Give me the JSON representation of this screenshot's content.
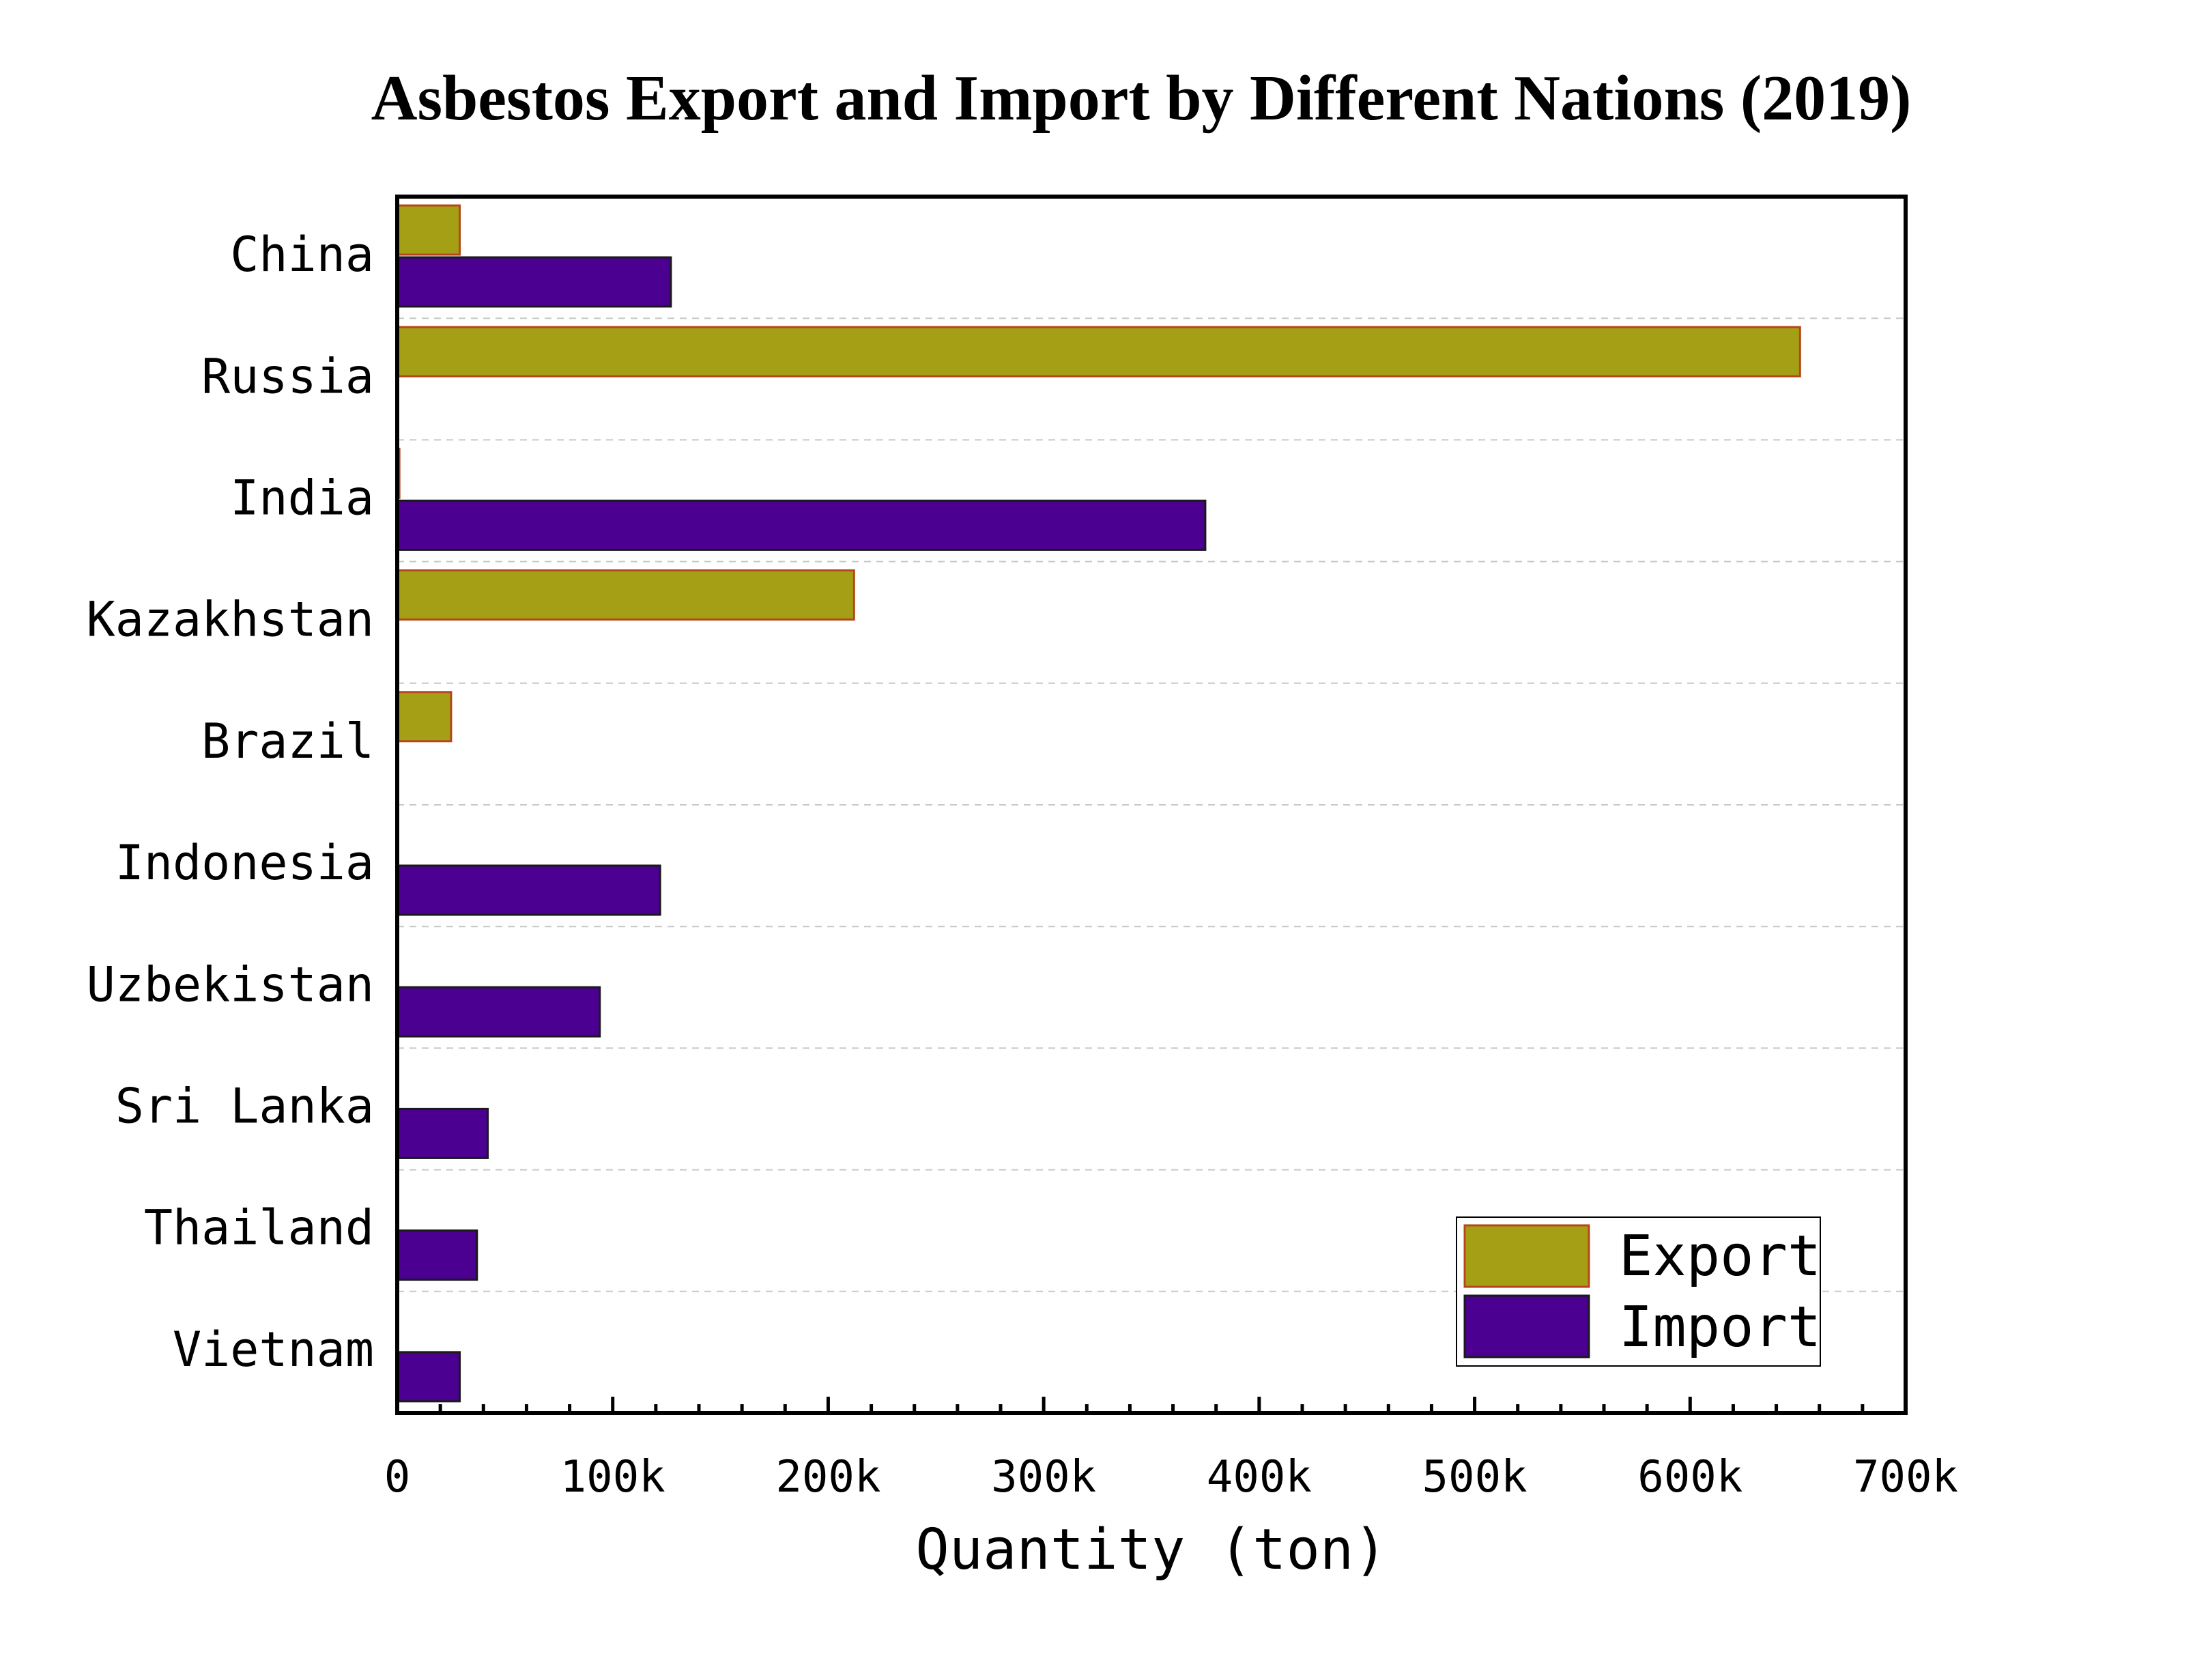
{
  "chart_data": {
    "type": "bar",
    "orientation": "horizontal",
    "title": "Asbestos Export and Import by Different Nations (2019)",
    "xlabel": "Quantity (ton)",
    "ylabel": "",
    "xlim": [
      0,
      700000
    ],
    "x_ticks": [
      0,
      100000,
      200000,
      300000,
      400000,
      500000,
      600000,
      700000
    ],
    "x_tick_labels": [
      "0",
      "100k",
      "200k",
      "300k",
      "400k",
      "500k",
      "600k",
      "700k"
    ],
    "categories": [
      "China",
      "Russia",
      "India",
      "Kazakhstan",
      "Brazil",
      "Indonesia",
      "Uzbekistan",
      "Sri Lanka",
      "Thailand",
      "Vietnam"
    ],
    "series": [
      {
        "name": "Export",
        "color": "#a59f16",
        "edge_color": "#b5471a",
        "values": [
          29000,
          651000,
          1000,
          212000,
          25000,
          0,
          0,
          0,
          0,
          0
        ]
      },
      {
        "name": "Import",
        "color": "#4b0091",
        "edge_color": "#1a1a1a",
        "values": [
          127000,
          0,
          375000,
          0,
          0,
          122000,
          94000,
          42000,
          37000,
          29000
        ]
      }
    ],
    "grid": {
      "x": false,
      "y": true,
      "style": "dashed"
    },
    "legend_position": "lower-right"
  }
}
